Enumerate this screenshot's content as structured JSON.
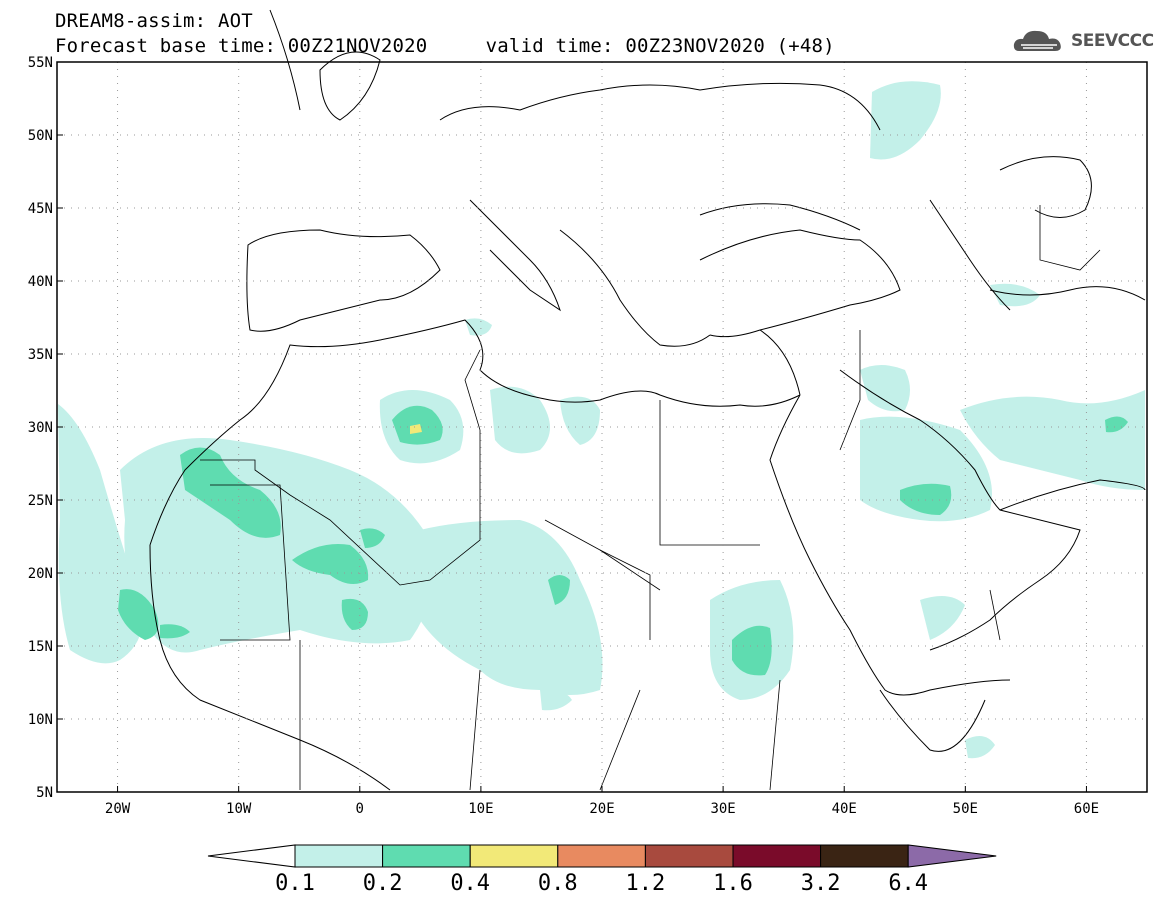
{
  "header": {
    "title": "DREAM8-assim: AOT",
    "base_time": "Forecast base time: 00Z21NOV2020",
    "valid_time": "valid time: 00Z23NOV2020 (+48)"
  },
  "logo": {
    "text": "SEEVCCC",
    "icon": "cloud-icon"
  },
  "map": {
    "lon_range": [
      -25,
      65
    ],
    "lat_range": [
      5,
      55
    ],
    "lon_ticks": [
      {
        "value": -20,
        "label": "20W"
      },
      {
        "value": -10,
        "label": "10W"
      },
      {
        "value": 0,
        "label": "0"
      },
      {
        "value": 10,
        "label": "10E"
      },
      {
        "value": 20,
        "label": "20E"
      },
      {
        "value": 30,
        "label": "30E"
      },
      {
        "value": 40,
        "label": "40E"
      },
      {
        "value": 50,
        "label": "50E"
      },
      {
        "value": 60,
        "label": "60E"
      }
    ],
    "lat_ticks": [
      {
        "value": 55,
        "label": "55N"
      },
      {
        "value": 50,
        "label": "50N"
      },
      {
        "value": 45,
        "label": "45N"
      },
      {
        "value": 40,
        "label": "40N"
      },
      {
        "value": 35,
        "label": "35N"
      },
      {
        "value": 30,
        "label": "30N"
      },
      {
        "value": 25,
        "label": "25N"
      },
      {
        "value": 20,
        "label": "20N"
      },
      {
        "value": 15,
        "label": "15N"
      },
      {
        "value": 10,
        "label": "10N"
      },
      {
        "value": 5,
        "label": "5N"
      }
    ],
    "gridlines": true
  },
  "colorbar": {
    "bins": [
      {
        "color": "#c3f0e9"
      },
      {
        "color": "#5fdcb0"
      },
      {
        "color": "#f2e978"
      },
      {
        "color": "#e88a60"
      },
      {
        "color": "#a84a3e"
      },
      {
        "color": "#7a0b2a"
      },
      {
        "color": "#3a2414"
      }
    ],
    "over_color": "#8c6aa8",
    "under_color": "#ffffff",
    "labels": [
      "0.1",
      "0.2",
      "0.4",
      "0.8",
      "1.2",
      "1.6",
      "3.2",
      "6.4"
    ]
  },
  "colors": {
    "low": "#c3f0e9",
    "mid": "#5fdcb0",
    "high": "#f2e978"
  }
}
